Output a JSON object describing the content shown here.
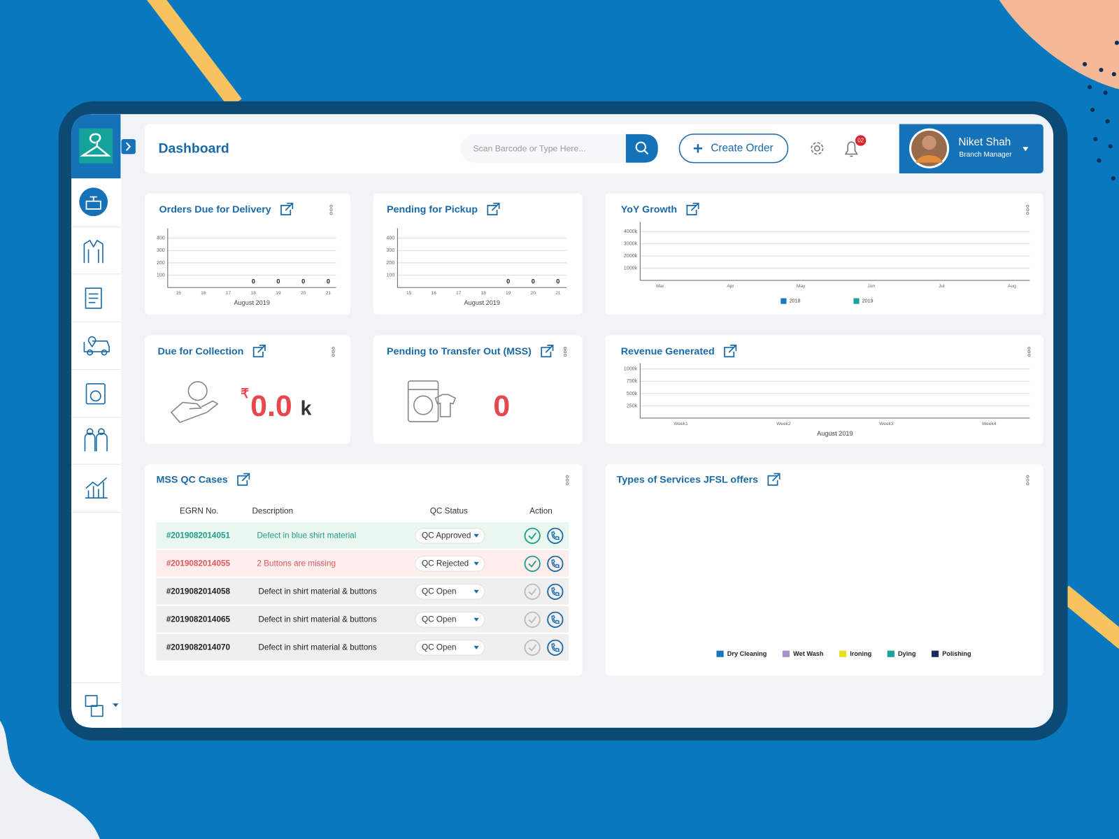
{
  "header": {
    "title": "Dashboard",
    "search_placeholder": "Scan Barcode or Type Here...",
    "create_order": "Create Order",
    "notification_count": "02",
    "user_name": "Niket Shah",
    "user_role": "Branch Manager"
  },
  "orders_due": {
    "title": "Orders Due for Delivery",
    "chart_data": {
      "type": "bar",
      "categories": [
        "15",
        "16",
        "17",
        "18",
        "19",
        "20",
        "21"
      ],
      "values": [
        null,
        null,
        null,
        0,
        0,
        0,
        0
      ],
      "ylim": [
        0,
        480
      ],
      "yticks": [
        100,
        200,
        300,
        400
      ],
      "xlabel": "August 2019",
      "grid": true,
      "color": "#1976c0"
    }
  },
  "pending_pickup": {
    "title": "Pending for Pickup",
    "chart_data": {
      "type": "bar",
      "categories": [
        "15",
        "16",
        "17",
        "18",
        "19",
        "20",
        "21"
      ],
      "values": [
        null,
        null,
        null,
        null,
        0,
        0,
        0
      ],
      "ylim": [
        0,
        480
      ],
      "yticks": [
        100,
        200,
        300,
        400
      ],
      "xlabel": "August 2019",
      "grid": true,
      "color": "#1976c0"
    }
  },
  "yoy_growth": {
    "title": "YoY Growth",
    "chart_data": {
      "type": "line",
      "categories": [
        "Mar",
        "Apr",
        "May",
        "Jun",
        "Jul",
        "Aug"
      ],
      "series": [
        {
          "name": "2018",
          "color": "#1976c0",
          "values": [
            null,
            null,
            null,
            null,
            null,
            null
          ]
        },
        {
          "name": "2019",
          "color": "#1aa39a",
          "values": [
            null,
            null,
            null,
            null,
            null,
            null
          ]
        }
      ],
      "ylim": [
        0,
        4800000
      ],
      "yticks": [
        {
          "value": 1000000,
          "label": "1000k"
        },
        {
          "value": 2000000,
          "label": "2000k"
        },
        {
          "value": 3000000,
          "label": "3000k"
        },
        {
          "value": 4000000,
          "label": "4000k"
        }
      ],
      "grid": true,
      "legend": "bottom"
    }
  },
  "due_collection": {
    "title": "Due for Collection",
    "currency": "₹",
    "amount": "0.0",
    "unit": "k"
  },
  "pending_transfer": {
    "title": "Pending to Transfer Out (MSS)",
    "count": 0
  },
  "revenue": {
    "title": "Revenue Generated",
    "chart_data": {
      "type": "bar",
      "categories": [
        "Week1",
        "Week2",
        "Week3",
        "Week4"
      ],
      "values": [
        null,
        null,
        null,
        null
      ],
      "ylim": [
        0,
        1120000
      ],
      "yticks": [
        {
          "value": 250000,
          "label": "250k"
        },
        {
          "value": 500000,
          "label": "500k"
        },
        {
          "value": 750000,
          "label": "750k"
        },
        {
          "value": 1000000,
          "label": "1000k"
        }
      ],
      "xlabel": "August 2019",
      "grid": true,
      "color": "#1976c0"
    }
  },
  "qc_cases": {
    "title": "MSS QC Cases",
    "columns": [
      "EGRN No.",
      "Description",
      "QC Status",
      "Action"
    ],
    "rows": [
      {
        "egrn": "#2019082014051",
        "description": "Defect in blue shirt material",
        "status": "QC Approved",
        "color": "#1f9d8f",
        "background": "#eaf7ee",
        "check_color": "#1f9d8f"
      },
      {
        "egrn": "#2019082014055",
        "description": "2 Buttons are missing",
        "status": "QC Rejected",
        "color": "#e0575b",
        "background": "#fdeeee",
        "check_color": "#1f9d8f"
      },
      {
        "egrn": "#2019082014058",
        "description": "Defect in shirt material & buttons",
        "status": "QC Open",
        "color": "#222222",
        "background": "#efefef",
        "check_color": "#bbbbbb"
      },
      {
        "egrn": "#2019082014065",
        "description": "Defect in shirt material & buttons",
        "status": "QC Open",
        "color": "#222222",
        "background": "#efefef",
        "check_color": "#bbbbbb"
      },
      {
        "egrn": "#2019082014070",
        "description": "Defect in shirt material & buttons",
        "status": "QC Open",
        "color": "#222222",
        "background": "#efefef",
        "check_color": "#bbbbbb"
      }
    ]
  },
  "services": {
    "title": "Types of Services JFSL offers",
    "chart_data": {
      "type": "pie",
      "series": [
        {
          "name": "Dry Cleaning",
          "color": "#1976c0"
        },
        {
          "name": "Wet Wash",
          "color": "#a98fc8"
        },
        {
          "name": "Ironing",
          "color": "#e6e020"
        },
        {
          "name": "Dying",
          "color": "#1aa39a"
        },
        {
          "name": "Polishing",
          "color": "#1c2a5c"
        }
      ],
      "legend": "bottom"
    }
  }
}
